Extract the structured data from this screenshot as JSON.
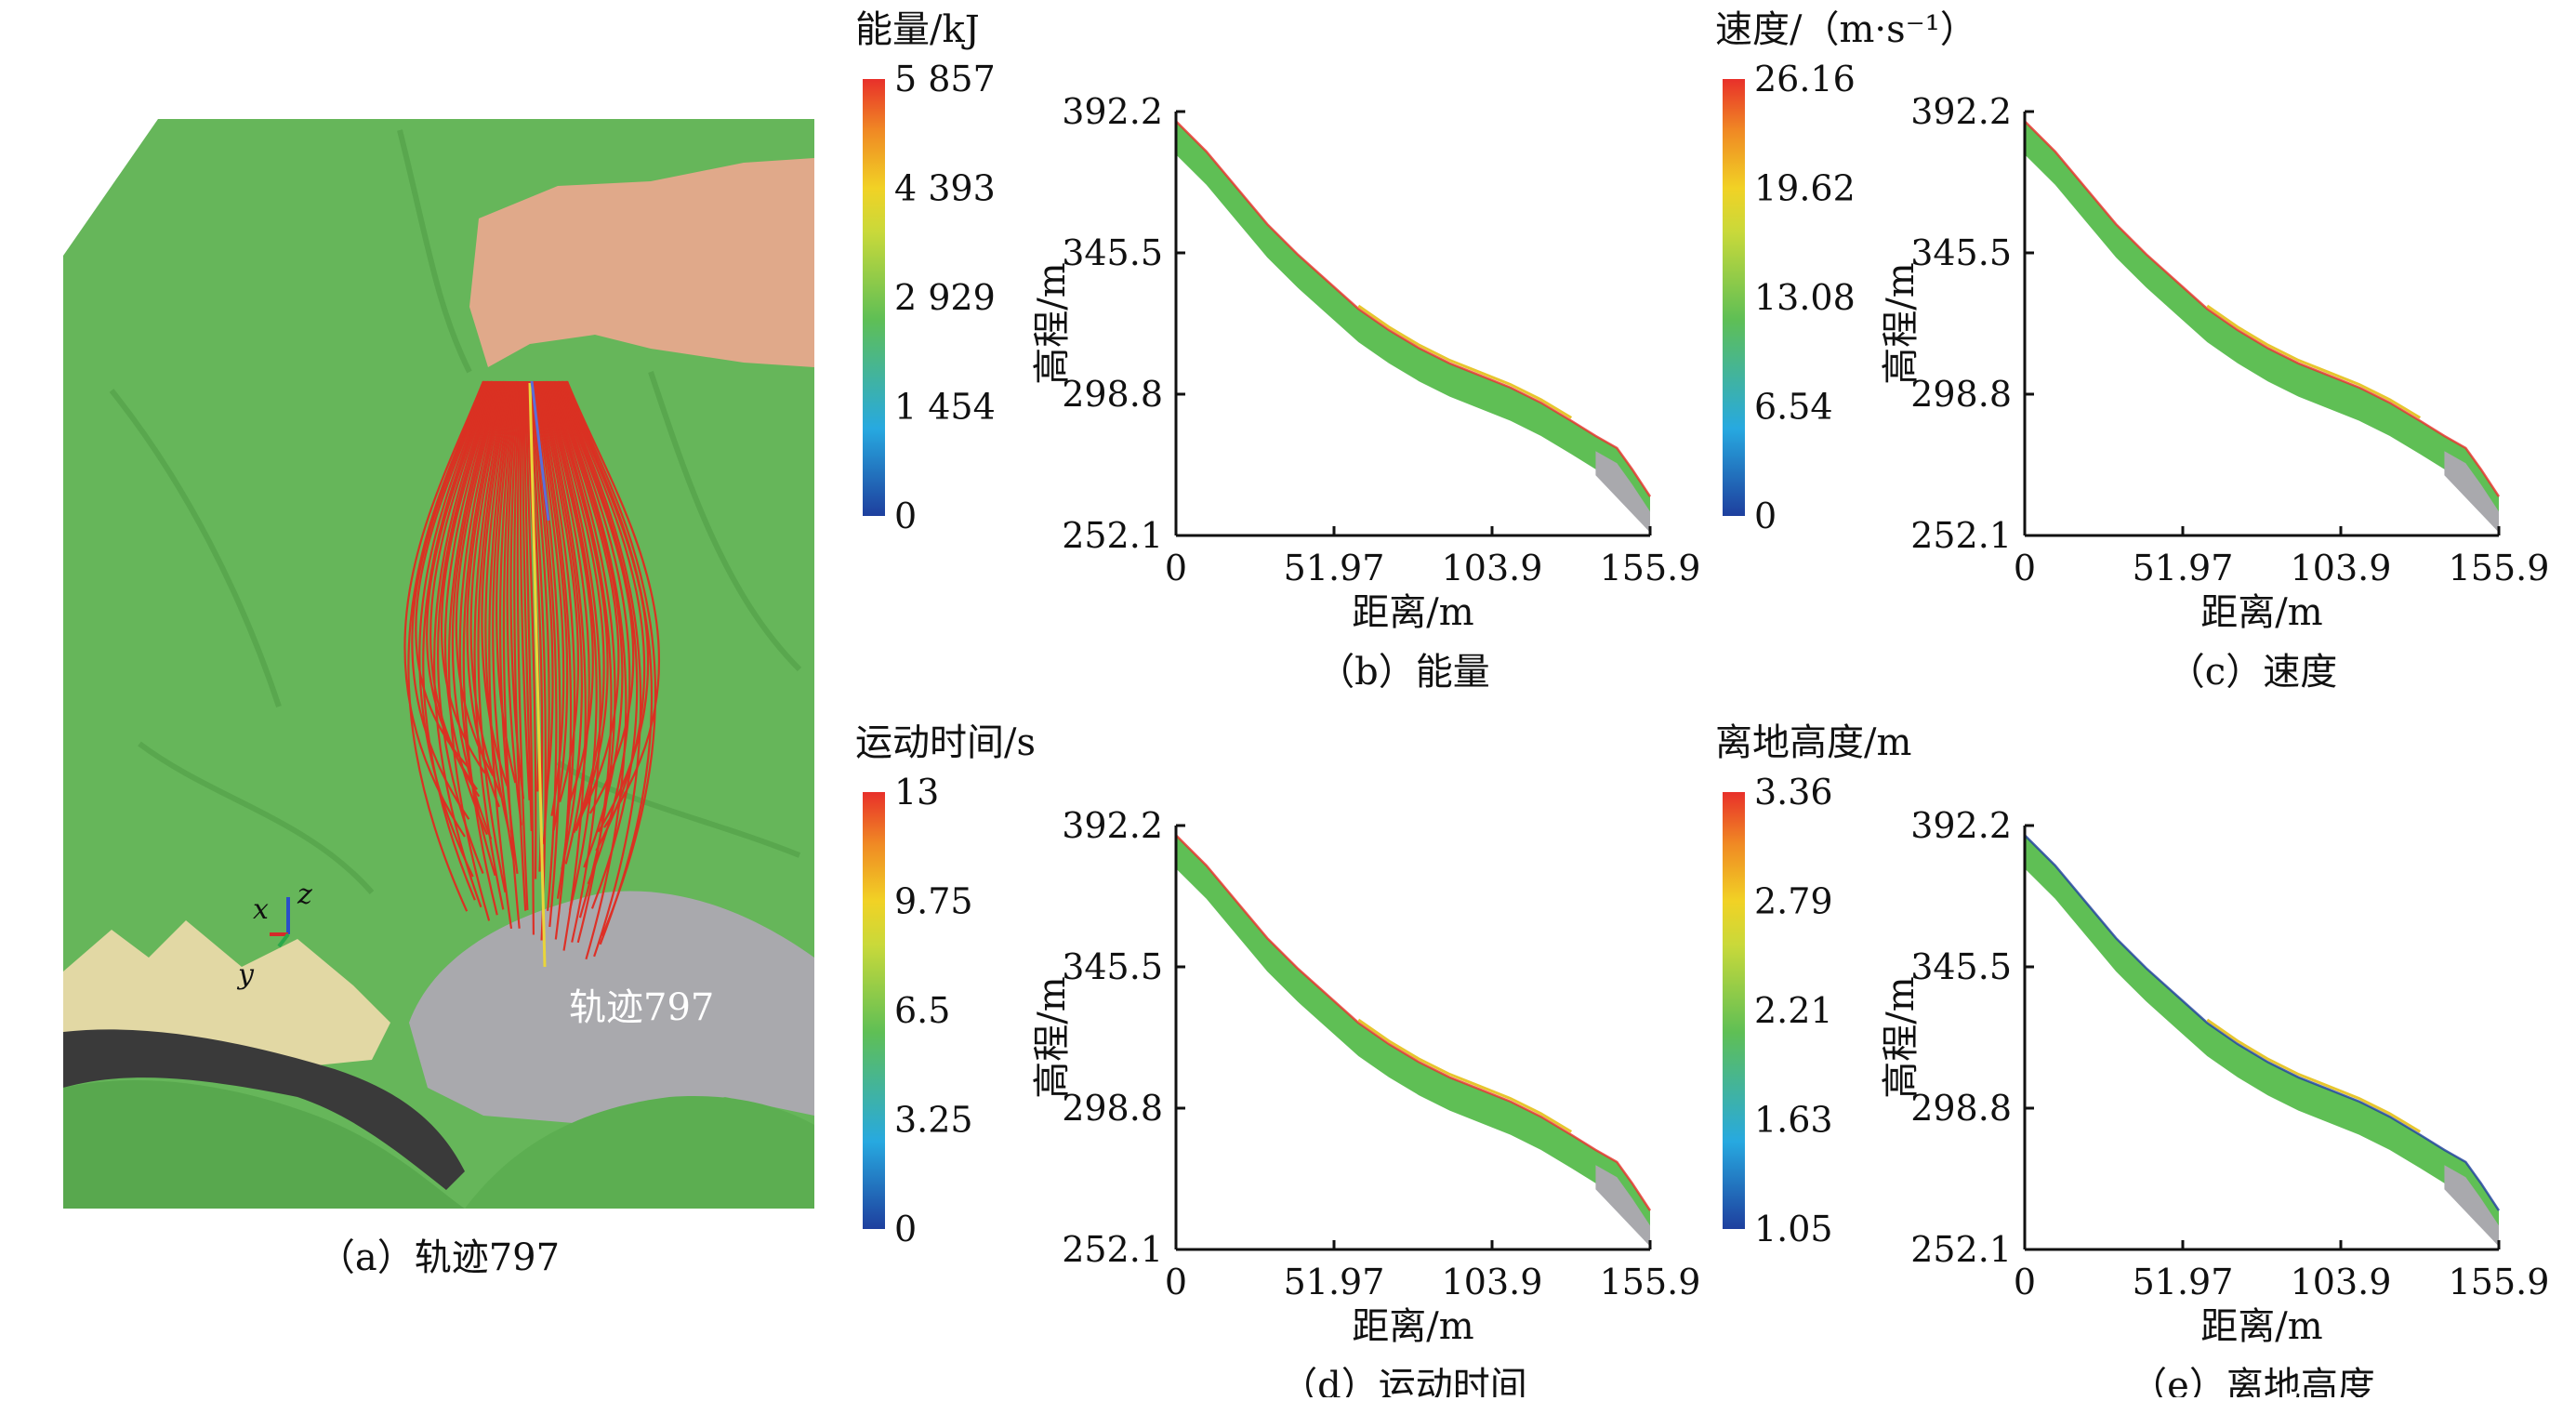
{
  "colorscale": [
    "#1e3f9e",
    "#27a9e0",
    "#5fbf55",
    "#c9d93a",
    "#f1d225",
    "#f08a24",
    "#e8302a"
  ],
  "terrain_colors": {
    "grass": "#66b65a",
    "grass_dark": "#4e9a46",
    "rock_pink": "#e0a98a",
    "cliff_tan": "#e2d8a4",
    "rock_grey": "#a9a9ad",
    "shadow": "#3a3a3a",
    "trajectory": "#e12a20"
  },
  "panel_a": {
    "caption": "（a）轨迹797",
    "trajectory_label": "轨迹797",
    "axes": {
      "x": "x",
      "y": "y",
      "z": "z"
    }
  },
  "colorbars": [
    {
      "title": "能量/kJ",
      "ticks": [
        "5 857",
        "4 393",
        "2 929",
        "1 454",
        "0"
      ]
    },
    {
      "title": "速度/（m·s⁻¹）",
      "ticks": [
        "26.16",
        "19.62",
        "13.08",
        "6.54",
        "0"
      ]
    },
    {
      "title": "运动时间/s",
      "ticks": [
        "13",
        "9.75",
        "6.5",
        "3.25",
        "0"
      ]
    },
    {
      "title": "离地高度/m",
      "ticks": [
        "3.36",
        "2.79",
        "2.21",
        "1.63",
        "1.05"
      ]
    }
  ],
  "chart_data": [
    {
      "type": "line",
      "caption": "（b）能量",
      "xlabel": "距离/m",
      "ylabel": "高程/m",
      "xlim": [
        0,
        155.9
      ],
      "ylim": [
        252.1,
        392.2
      ],
      "xticks": [
        "0",
        "51.97",
        "103.9",
        "155.9"
      ],
      "yticks": [
        "392.2",
        "345.5",
        "298.8",
        "252.1"
      ],
      "x": [
        0,
        10,
        20,
        30,
        40,
        50,
        60,
        70,
        80,
        90,
        100,
        110,
        120,
        130,
        138,
        145,
        150,
        155.9
      ],
      "series": [
        {
          "values": [
            386,
            376,
            364,
            352,
            342,
            333,
            324,
            317,
            311,
            306,
            302,
            298,
            293,
            287,
            282,
            278,
            271,
            262
          ]
        }
      ]
    },
    {
      "type": "line",
      "caption": "（c）速度",
      "xlabel": "距离/m",
      "ylabel": "高程/m",
      "xlim": [
        0,
        155.9
      ],
      "ylim": [
        252.1,
        392.2
      ],
      "xticks": [
        "0",
        "51.97",
        "103.9",
        "155.9"
      ],
      "yticks": [
        "392.2",
        "345.5",
        "298.8",
        "252.1"
      ],
      "x": [
        0,
        10,
        20,
        30,
        40,
        50,
        60,
        70,
        80,
        90,
        100,
        110,
        120,
        130,
        138,
        145,
        150,
        155.9
      ],
      "series": [
        {
          "values": [
            386,
            376,
            364,
            352,
            342,
            333,
            324,
            317,
            311,
            306,
            302,
            298,
            293,
            287,
            282,
            278,
            271,
            262
          ]
        }
      ]
    },
    {
      "type": "line",
      "caption": "（d）运动时间",
      "xlabel": "距离/m",
      "ylabel": "高程/m",
      "xlim": [
        0,
        155.9
      ],
      "ylim": [
        252.1,
        392.2
      ],
      "xticks": [
        "0",
        "51.97",
        "103.9",
        "155.9"
      ],
      "yticks": [
        "392.2",
        "345.5",
        "298.8",
        "252.1"
      ],
      "x": [
        0,
        10,
        20,
        30,
        40,
        50,
        60,
        70,
        80,
        90,
        100,
        110,
        120,
        130,
        138,
        145,
        150,
        155.9
      ],
      "series": [
        {
          "values": [
            386,
            376,
            364,
            352,
            342,
            333,
            324,
            317,
            311,
            306,
            302,
            298,
            293,
            287,
            282,
            278,
            271,
            262
          ]
        }
      ]
    },
    {
      "type": "line",
      "caption": "（e）离地高度",
      "xlabel": "距离/m",
      "ylabel": "高程/m",
      "xlim": [
        0,
        155.9
      ],
      "ylim": [
        252.1,
        392.2
      ],
      "xticks": [
        "0",
        "51.97",
        "103.9",
        "155.9"
      ],
      "yticks": [
        "392.2",
        "345.5",
        "298.8",
        "252.1"
      ],
      "x": [
        0,
        10,
        20,
        30,
        40,
        50,
        60,
        70,
        80,
        90,
        100,
        110,
        120,
        130,
        138,
        145,
        150,
        155.9
      ],
      "series": [
        {
          "values": [
            386,
            376,
            364,
            352,
            342,
            333,
            324,
            317,
            311,
            306,
            302,
            298,
            293,
            287,
            282,
            278,
            271,
            262
          ]
        }
      ]
    }
  ]
}
